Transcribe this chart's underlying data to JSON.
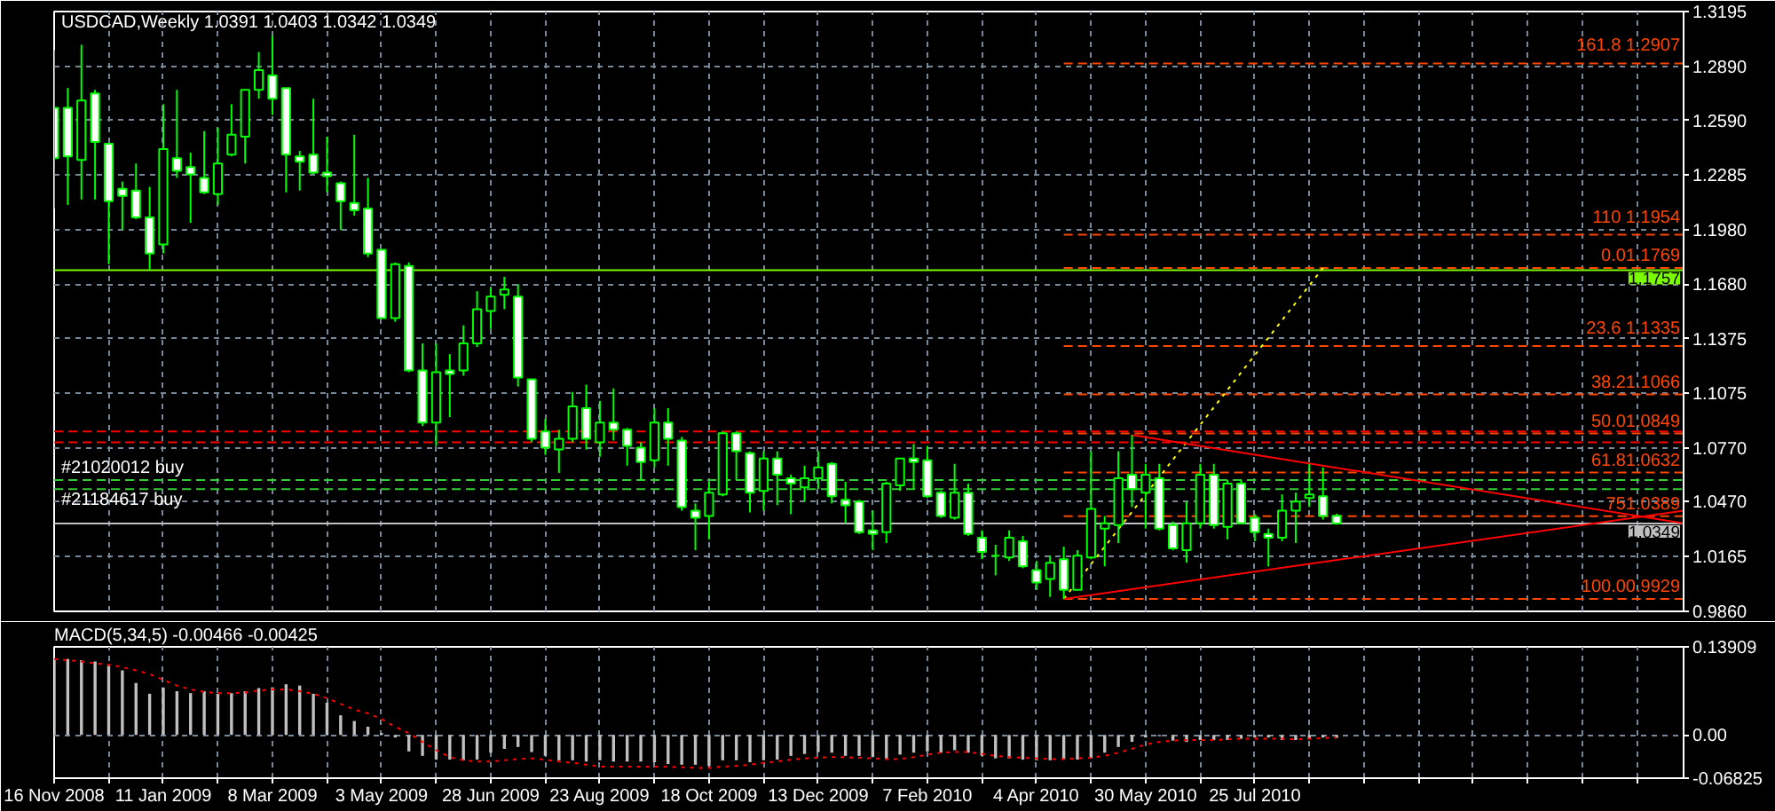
{
  "chart_data": [
    {
      "type": "candlestick",
      "title": "USDCAD,Weekly 1.0391 1.0403 1.0342 1.0349",
      "color": "#00ff00",
      "x": [
        "2008-11-16",
        "2008-11-23",
        "2008-11-30",
        "2008-12-07",
        "2008-12-14",
        "2008-12-21",
        "2008-12-28",
        "2009-01-04",
        "2009-01-11",
        "2009-01-18",
        "2009-01-25",
        "2009-02-01",
        "2009-02-08",
        "2009-02-15",
        "2009-02-22",
        "2009-03-01",
        "2009-03-08",
        "2009-03-15",
        "2009-03-22",
        "2009-03-29",
        "2009-04-05",
        "2009-04-12",
        "2009-04-19",
        "2009-04-26",
        "2009-05-03",
        "2009-05-10",
        "2009-05-17",
        "2009-05-24",
        "2009-05-31",
        "2009-06-07",
        "2009-06-14",
        "2009-06-21",
        "2009-06-28",
        "2009-07-05",
        "2009-07-12",
        "2009-07-19",
        "2009-07-26",
        "2009-08-02",
        "2009-08-09",
        "2009-08-16",
        "2009-08-23",
        "2009-08-30",
        "2009-09-06",
        "2009-09-13",
        "2009-09-20",
        "2009-09-27",
        "2009-10-04",
        "2009-10-11",
        "2009-10-18",
        "2009-10-25",
        "2009-11-01",
        "2009-11-08",
        "2009-11-15",
        "2009-11-22",
        "2009-11-29",
        "2009-12-06",
        "2009-12-13",
        "2009-12-20",
        "2009-12-27",
        "2010-01-03",
        "2010-01-10",
        "2010-01-17",
        "2010-01-24",
        "2010-01-31",
        "2010-02-07",
        "2010-02-14",
        "2010-02-21",
        "2010-02-28",
        "2010-03-07",
        "2010-03-14",
        "2010-03-21",
        "2010-03-28",
        "2010-04-04",
        "2010-04-11",
        "2010-04-18",
        "2010-04-25",
        "2010-05-02",
        "2010-05-09",
        "2010-05-16",
        "2010-05-23",
        "2010-05-30",
        "2010-06-06",
        "2010-06-13",
        "2010-06-20",
        "2010-06-27",
        "2010-07-04",
        "2010-07-11",
        "2010-07-18",
        "2010-07-25",
        "2010-08-01",
        "2010-08-08",
        "2010-08-15",
        "2010-08-22",
        "2010-08-29",
        "2010-09-05"
      ],
      "ohlc": [
        [
          1.266,
          1.298,
          1.21,
          1.238
        ],
        [
          1.266,
          1.277,
          1.212,
          1.239
        ],
        [
          1.237,
          1.301,
          1.215,
          1.27
        ],
        [
          1.274,
          1.276,
          1.215,
          1.247
        ],
        [
          1.246,
          1.246,
          1.179,
          1.214
        ],
        [
          1.221,
          1.225,
          1.198,
          1.217
        ],
        [
          1.22,
          1.235,
          1.204,
          1.205
        ],
        [
          1.205,
          1.222,
          1.176,
          1.185
        ],
        [
          1.19,
          1.268,
          1.185,
          1.243
        ],
        [
          1.238,
          1.276,
          1.227,
          1.231
        ],
        [
          1.233,
          1.241,
          1.202,
          1.229
        ],
        [
          1.227,
          1.253,
          1.218,
          1.219
        ],
        [
          1.218,
          1.255,
          1.212,
          1.235
        ],
        [
          1.24,
          1.268,
          1.239,
          1.251
        ],
        [
          1.25,
          1.276,
          1.235,
          1.276
        ],
        [
          1.276,
          1.297,
          1.271,
          1.287
        ],
        [
          1.284,
          1.306,
          1.262,
          1.271
        ],
        [
          1.277,
          1.277,
          1.219,
          1.24
        ],
        [
          1.239,
          1.242,
          1.22,
          1.236
        ],
        [
          1.24,
          1.271,
          1.229,
          1.23
        ],
        [
          1.23,
          1.25,
          1.219,
          1.228
        ],
        [
          1.224,
          1.225,
          1.198,
          1.214
        ],
        [
          1.213,
          1.251,
          1.206,
          1.209
        ],
        [
          1.21,
          1.227,
          1.183,
          1.185
        ],
        [
          1.187,
          1.187,
          1.149,
          1.149
        ],
        [
          1.149,
          1.18,
          1.147,
          1.179
        ],
        [
          1.178,
          1.18,
          1.119,
          1.12
        ],
        [
          1.12,
          1.135,
          1.089,
          1.091
        ],
        [
          1.091,
          1.135,
          1.078,
          1.119
        ],
        [
          1.12,
          1.129,
          1.094,
          1.118
        ],
        [
          1.12,
          1.145,
          1.117,
          1.135
        ],
        [
          1.135,
          1.164,
          1.133,
          1.154
        ],
        [
          1.153,
          1.166,
          1.143,
          1.161
        ],
        [
          1.162,
          1.172,
          1.154,
          1.165
        ],
        [
          1.161,
          1.168,
          1.111,
          1.116
        ],
        [
          1.115,
          1.115,
          1.08,
          1.082
        ],
        [
          1.086,
          1.093,
          1.073,
          1.077
        ],
        [
          1.076,
          1.087,
          1.063,
          1.082
        ],
        [
          1.082,
          1.108,
          1.08,
          1.1
        ],
        [
          1.099,
          1.112,
          1.076,
          1.082
        ],
        [
          1.08,
          1.103,
          1.072,
          1.091
        ],
        [
          1.091,
          1.11,
          1.081,
          1.087
        ],
        [
          1.087,
          1.088,
          1.067,
          1.078
        ],
        [
          1.077,
          1.08,
          1.059,
          1.069
        ],
        [
          1.07,
          1.099,
          1.066,
          1.091
        ],
        [
          1.091,
          1.099,
          1.067,
          1.082
        ],
        [
          1.081,
          1.083,
          1.042,
          1.044
        ],
        [
          1.042,
          1.046,
          1.02,
          1.038
        ],
        [
          1.039,
          1.058,
          1.026,
          1.052
        ],
        [
          1.051,
          1.086,
          1.05,
          1.085
        ],
        [
          1.085,
          1.086,
          1.059,
          1.075
        ],
        [
          1.074,
          1.075,
          1.041,
          1.052
        ],
        [
          1.053,
          1.075,
          1.042,
          1.071
        ],
        [
          1.071,
          1.075,
          1.045,
          1.062
        ],
        [
          1.06,
          1.062,
          1.04,
          1.057
        ],
        [
          1.055,
          1.067,
          1.047,
          1.06
        ],
        [
          1.06,
          1.075,
          1.054,
          1.066
        ],
        [
          1.068,
          1.069,
          1.046,
          1.05
        ],
        [
          1.048,
          1.058,
          1.035,
          1.045
        ],
        [
          1.047,
          1.048,
          1.029,
          1.03
        ],
        [
          1.031,
          1.042,
          1.02,
          1.029
        ],
        [
          1.03,
          1.058,
          1.024,
          1.057
        ],
        [
          1.056,
          1.071,
          1.053,
          1.071
        ],
        [
          1.071,
          1.079,
          1.054,
          1.069
        ],
        [
          1.07,
          1.078,
          1.049,
          1.05
        ],
        [
          1.052,
          1.053,
          1.038,
          1.039
        ],
        [
          1.038,
          1.068,
          1.037,
          1.052
        ],
        [
          1.052,
          1.057,
          1.028,
          1.029
        ],
        [
          1.027,
          1.031,
          1.015,
          1.019
        ],
        [
          1.017,
          1.023,
          1.006,
          1.017
        ],
        [
          1.016,
          1.031,
          1.014,
          1.027
        ],
        [
          1.025,
          1.028,
          1.01,
          1.011
        ],
        [
          1.009,
          1.014,
          0.998,
          1.002
        ],
        [
          1.004,
          1.017,
          0.994,
          1.013
        ],
        [
          1.015,
          1.022,
          0.9929,
          0.998
        ],
        [
          0.998,
          1.02,
          0.998,
          1.017
        ],
        [
          1.016,
          1.075,
          1.015,
          1.043
        ],
        [
          1.032,
          1.039,
          1.011,
          1.035
        ],
        [
          1.034,
          1.075,
          1.024,
          1.06
        ],
        [
          1.062,
          1.084,
          1.044,
          1.054
        ],
        [
          1.052,
          1.068,
          1.032,
          1.062
        ],
        [
          1.06,
          1.068,
          1.031,
          1.032
        ],
        [
          1.034,
          1.036,
          1.02,
          1.021
        ],
        [
          1.02,
          1.047,
          1.013,
          1.035
        ],
        [
          1.035,
          1.068,
          1.032,
          1.062
        ],
        [
          1.062,
          1.068,
          1.032,
          1.034
        ],
        [
          1.033,
          1.059,
          1.026,
          1.057
        ],
        [
          1.057,
          1.059,
          1.035,
          1.035
        ],
        [
          1.038,
          1.04,
          1.025,
          1.03
        ],
        [
          1.029,
          1.032,
          1.011,
          1.027
        ],
        [
          1.027,
          1.051,
          1.025,
          1.042
        ],
        [
          1.042,
          1.052,
          1.024,
          1.047
        ],
        [
          1.049,
          1.068,
          1.044,
          1.051
        ],
        [
          1.05,
          1.066,
          1.037,
          1.039
        ],
        [
          1.0391,
          1.0403,
          1.0342,
          1.0349
        ]
      ],
      "series": [
        {
          "type": "line",
          "x": [
            "2010-04-18",
            "2011-03-02"
          ],
          "values": [
            1.2907,
            1.2907
          ],
          "color": "#ff4500",
          "line_style": "dashed"
        },
        {
          "type": "line",
          "x": [
            "2010-04-18",
            "2011-03-02"
          ],
          "values": [
            1.1954,
            1.1954
          ],
          "color": "#ff4500",
          "line_style": "dashed"
        },
        {
          "type": "line",
          "x": [
            "2010-04-18",
            "2011-03-02"
          ],
          "values": [
            1.1769,
            1.1769
          ],
          "color": "#ff4500",
          "line_style": "dashed"
        },
        {
          "type": "line",
          "x": [
            "2010-04-18",
            "2011-03-02"
          ],
          "values": [
            1.1335,
            1.1335
          ],
          "color": "#ff4500",
          "line_style": "dashed"
        },
        {
          "type": "line",
          "x": [
            "2010-04-18",
            "2011-03-02"
          ],
          "values": [
            1.1066,
            1.1066
          ],
          "color": "#ff4500",
          "line_style": "dashed"
        },
        {
          "type": "line",
          "x": [
            "2010-04-18",
            "2011-03-02"
          ],
          "values": [
            1.0849,
            1.0849
          ],
          "color": "#ff4500",
          "line_style": "dashed"
        },
        {
          "type": "line",
          "x": [
            "2010-04-18",
            "2011-03-02"
          ],
          "values": [
            1.0632,
            1.0632
          ],
          "color": "#ff4500",
          "line_style": "dashed"
        },
        {
          "type": "line",
          "x": [
            "2010-04-18",
            "2011-03-02"
          ],
          "values": [
            1.0389,
            1.0389
          ],
          "color": "#ff4500",
          "line_style": "dashed"
        },
        {
          "type": "line",
          "x": [
            "2010-04-18",
            "2011-03-02"
          ],
          "values": [
            0.9929,
            0.9929
          ],
          "color": "#ff4500",
          "line_style": "dashed"
        },
        {
          "type": "line",
          "x": [
            "2010-04-18",
            "2010-08-29"
          ],
          "values": [
            0.9929,
            1.1769
          ],
          "color": "#ffff00",
          "line_style": "dotted"
        },
        {
          "type": "line",
          "x": [
            "2010-05-23",
            "2011-03-02"
          ],
          "values": [
            1.084,
            1.035
          ],
          "color": "#ff0000",
          "line_style": "solid"
        },
        {
          "type": "line",
          "x": [
            "2010-04-18",
            "2011-03-02"
          ],
          "values": [
            0.9929,
            1.042
          ],
          "color": "#ff0000",
          "line_style": "solid"
        }
      ],
      "ref_lines": [
        {
          "axis": "y",
          "value": 1.1757,
          "label": "1.1757",
          "color": "#7cfc00",
          "line_style": "solid"
        },
        {
          "axis": "y",
          "value": 1.0349,
          "label": "1.0349",
          "color": "#c0c0c0",
          "line_style": "solid"
        },
        {
          "axis": "y",
          "value": 1.059,
          "label": "#21020012 buy",
          "color": "#32cd32",
          "line_style": "dashed"
        },
        {
          "axis": "y",
          "value": 1.054,
          "label": "#21184617 buy",
          "color": "#32cd32",
          "line_style": "dashed"
        },
        {
          "axis": "y",
          "value": 1.086,
          "color": "#ff0000",
          "line_style": "dashed"
        },
        {
          "axis": "y",
          "value": 1.08,
          "color": "#ff0000",
          "line_style": "dashed"
        }
      ],
      "annotations": [
        {
          "text": "161.8 1.2907",
          "x": "2011-03-02",
          "y": 1.2907
        },
        {
          "text": "110 1.1954",
          "x": "2011-03-02",
          "y": 1.1954
        },
        {
          "text": "0.01.1769",
          "x": "2011-03-02",
          "y": 1.1769
        },
        {
          "text": "23.6 1.1335",
          "x": "2011-03-02",
          "y": 1.1335
        },
        {
          "text": "38.21.1066",
          "x": "2011-03-02",
          "y": 1.1066
        },
        {
          "text": "50.01.0849",
          "x": "2011-03-02",
          "y": 1.0849
        },
        {
          "text": "61.81.0632",
          "x": "2011-03-02",
          "y": 1.0632
        },
        {
          "text": "751.0389",
          "x": "2011-03-02",
          "y": 1.0389
        },
        {
          "text": "100.00.9929",
          "x": "2011-03-02",
          "y": 0.9929
        }
      ],
      "xlim": [
        "2008-11-16",
        "2011-03-02"
      ],
      "ylim": [
        0.986,
        1.3195
      ],
      "xticks": [
        {
          "value": "2008-11-16",
          "label": null
        },
        {
          "value": "2008-12-14",
          "label": null
        },
        {
          "value": "2009-01-11",
          "label": null
        },
        {
          "value": "2009-02-08",
          "label": null
        },
        {
          "value": "2009-03-08",
          "label": null
        },
        {
          "value": "2009-04-05",
          "label": null
        },
        {
          "value": "2009-05-03",
          "label": null
        },
        {
          "value": "2009-05-31",
          "label": null
        },
        {
          "value": "2009-06-28",
          "label": null
        },
        {
          "value": "2009-07-26",
          "label": null
        },
        {
          "value": "2009-08-23",
          "label": null
        },
        {
          "value": "2009-09-20",
          "label": null
        },
        {
          "value": "2009-10-18",
          "label": null
        },
        {
          "value": "2009-11-15",
          "label": null
        },
        {
          "value": "2009-12-13",
          "label": null
        },
        {
          "value": "2010-01-10",
          "label": null
        },
        {
          "value": "2010-02-07",
          "label": null
        },
        {
          "value": "2010-03-07",
          "label": null
        },
        {
          "value": "2010-04-04",
          "label": null
        },
        {
          "value": "2010-05-02",
          "label": null
        },
        {
          "value": "2010-05-30",
          "label": null
        },
        {
          "value": "2010-06-27",
          "label": null
        },
        {
          "value": "2010-07-25",
          "label": null
        },
        {
          "value": "2010-08-22",
          "label": null
        },
        {
          "value": "2010-09-19",
          "label": null
        },
        {
          "value": "2010-10-17",
          "label": null
        },
        {
          "value": "2010-11-14",
          "label": null
        },
        {
          "value": "2010-12-12",
          "label": null
        },
        {
          "value": "2011-01-09",
          "label": null
        },
        {
          "value": "2011-02-06",
          "label": null
        }
      ],
      "yticks": [
        1.3195,
        {
          "value": 1.289,
          "label": "1.2890"
        },
        {
          "value": 1.259,
          "label": "1.2590"
        },
        1.2285,
        {
          "value": 1.198,
          "label": "1.1980"
        },
        {
          "value": 1.168,
          "label": "1.1680"
        },
        1.1375,
        1.1075,
        {
          "value": 1.077,
          "label": "1.0770"
        },
        {
          "value": 1.047,
          "label": "1.0470"
        },
        1.0165,
        {
          "value": 0.986,
          "label": "0.9860"
        }
      ],
      "grid": true,
      "tick_labels": "y"
    },
    {
      "type": "bar",
      "title": "MACD(5,34,5) -0.00466 -0.00425",
      "x": [
        "2008-11-16",
        "2008-11-23",
        "2008-11-30",
        "2008-12-07",
        "2008-12-14",
        "2008-12-21",
        "2008-12-28",
        "2009-01-04",
        "2009-01-11",
        "2009-01-18",
        "2009-01-25",
        "2009-02-01",
        "2009-02-08",
        "2009-02-15",
        "2009-02-22",
        "2009-03-01",
        "2009-03-08",
        "2009-03-15",
        "2009-03-22",
        "2009-03-29",
        "2009-04-05",
        "2009-04-12",
        "2009-04-19",
        "2009-04-26",
        "2009-05-03",
        "2009-05-10",
        "2009-05-17",
        "2009-05-24",
        "2009-05-31",
        "2009-06-07",
        "2009-06-14",
        "2009-06-21",
        "2009-06-28",
        "2009-07-05",
        "2009-07-12",
        "2009-07-19",
        "2009-07-26",
        "2009-08-02",
        "2009-08-09",
        "2009-08-16",
        "2009-08-23",
        "2009-08-30",
        "2009-09-06",
        "2009-09-13",
        "2009-09-20",
        "2009-09-27",
        "2009-10-04",
        "2009-10-11",
        "2009-10-18",
        "2009-10-25",
        "2009-11-01",
        "2009-11-08",
        "2009-11-15",
        "2009-11-22",
        "2009-11-29",
        "2009-12-06",
        "2009-12-13",
        "2009-12-20",
        "2009-12-27",
        "2010-01-03",
        "2010-01-10",
        "2010-01-17",
        "2010-01-24",
        "2010-01-31",
        "2010-02-07",
        "2010-02-14",
        "2010-02-21",
        "2010-02-28",
        "2010-03-07",
        "2010-03-14",
        "2010-03-21",
        "2010-03-28",
        "2010-04-04",
        "2010-04-11",
        "2010-04-18",
        "2010-04-25",
        "2010-05-02",
        "2010-05-09",
        "2010-05-16",
        "2010-05-23",
        "2010-05-30",
        "2010-06-06",
        "2010-06-13",
        "2010-06-20",
        "2010-06-27",
        "2010-07-04",
        "2010-07-11",
        "2010-07-18",
        "2010-07-25",
        "2010-08-01",
        "2010-08-08",
        "2010-08-15",
        "2010-08-22",
        "2010-08-29",
        "2010-09-05"
      ],
      "series": [
        {
          "color": "#c0c0c0",
          "values": [
            0.12,
            0.12,
            0.118,
            0.116,
            0.109,
            0.102,
            0.082,
            0.065,
            0.075,
            0.069,
            0.066,
            0.069,
            0.065,
            0.066,
            0.069,
            0.074,
            0.075,
            0.08,
            0.078,
            0.065,
            0.051,
            0.031,
            0.022,
            0.013,
            0.003,
            -0.004,
            -0.026,
            -0.033,
            -0.039,
            -0.039,
            -0.04,
            -0.039,
            -0.028,
            -0.022,
            -0.019,
            -0.027,
            -0.033,
            -0.04,
            -0.04,
            -0.042,
            -0.04,
            -0.042,
            -0.042,
            -0.042,
            -0.043,
            -0.046,
            -0.047,
            -0.047,
            -0.049,
            -0.04,
            -0.04,
            -0.043,
            -0.04,
            -0.039,
            -0.033,
            -0.03,
            -0.027,
            -0.028,
            -0.033,
            -0.033,
            -0.035,
            -0.039,
            -0.031,
            -0.028,
            -0.026,
            -0.028,
            -0.024,
            -0.028,
            -0.033,
            -0.037,
            -0.037,
            -0.039,
            -0.04,
            -0.04,
            -0.039,
            -0.039,
            -0.037,
            -0.028,
            -0.019,
            -0.011,
            -0.004,
            -0.002,
            -0.009,
            -0.011,
            -0.008,
            -0.008,
            -0.008,
            -0.006,
            -0.004,
            -0.004,
            -0.008,
            -0.008,
            -0.006,
            -0.004,
            -0.00466
          ]
        },
        {
          "type": "line",
          "color": "#ff0000",
          "line_style": "dotted",
          "values": [
            0.12,
            0.118,
            0.116,
            0.113,
            0.111,
            0.107,
            0.102,
            0.096,
            0.087,
            0.078,
            0.072,
            0.068,
            0.066,
            0.066,
            0.067,
            0.07,
            0.072,
            0.072,
            0.069,
            0.065,
            0.058,
            0.049,
            0.04,
            0.034,
            0.025,
            0.013,
            0.003,
            -0.011,
            -0.024,
            -0.035,
            -0.04,
            -0.042,
            -0.042,
            -0.04,
            -0.038,
            -0.037,
            -0.039,
            -0.042,
            -0.044,
            -0.047,
            -0.05,
            -0.05,
            -0.05,
            -0.05,
            -0.05,
            -0.05,
            -0.051,
            -0.052,
            -0.052,
            -0.05,
            -0.049,
            -0.047,
            -0.044,
            -0.042,
            -0.039,
            -0.037,
            -0.036,
            -0.035,
            -0.035,
            -0.036,
            -0.037,
            -0.038,
            -0.038,
            -0.035,
            -0.031,
            -0.028,
            -0.027,
            -0.027,
            -0.03,
            -0.033,
            -0.035,
            -0.036,
            -0.037,
            -0.038,
            -0.038,
            -0.037,
            -0.036,
            -0.033,
            -0.028,
            -0.022,
            -0.015,
            -0.011,
            -0.009,
            -0.008,
            -0.008,
            -0.008,
            -0.007,
            -0.006,
            -0.006,
            -0.006,
            -0.006,
            -0.007,
            -0.006,
            -0.005,
            -0.00425
          ]
        }
      ],
      "xlim": [
        "2008-11-16",
        "2011-03-02"
      ],
      "ylim": [
        -0.06825,
        0.13909
      ],
      "xticks": [
        {
          "value": "2008-11-16",
          "label": "16 Nov 2008"
        },
        {
          "value": "2008-12-14",
          "label": null
        },
        {
          "value": "2009-01-11",
          "label": "11 Jan 2009"
        },
        {
          "value": "2009-02-08",
          "label": null
        },
        {
          "value": "2009-03-08",
          "label": "8 Mar 2009"
        },
        {
          "value": "2009-04-05",
          "label": null
        },
        {
          "value": "2009-05-03",
          "label": "3 May 2009"
        },
        {
          "value": "2009-05-31",
          "label": null
        },
        {
          "value": "2009-06-28",
          "label": "28 Jun 2009"
        },
        {
          "value": "2009-07-26",
          "label": null
        },
        {
          "value": "2009-08-23",
          "label": "23 Aug 2009"
        },
        {
          "value": "2009-09-20",
          "label": null
        },
        {
          "value": "2009-10-18",
          "label": "18 Oct 2009"
        },
        {
          "value": "2009-11-15",
          "label": null
        },
        {
          "value": "2009-12-13",
          "label": "13 Dec 2009"
        },
        {
          "value": "2010-01-10",
          "label": null
        },
        {
          "value": "2010-02-07",
          "label": "7 Feb 2010"
        },
        {
          "value": "2010-03-07",
          "label": null
        },
        {
          "value": "2010-04-04",
          "label": "4 Apr 2010"
        },
        {
          "value": "2010-05-02",
          "label": null
        },
        {
          "value": "2010-05-30",
          "label": "30 May 2010"
        },
        {
          "value": "2010-06-27",
          "label": null
        },
        {
          "value": "2010-07-25",
          "label": "25 Jul 2010"
        },
        {
          "value": "2010-08-22",
          "label": null
        },
        {
          "value": "2010-09-19",
          "label": null
        },
        {
          "value": "2010-10-17",
          "label": null
        },
        {
          "value": "2010-11-14",
          "label": null
        },
        {
          "value": "2010-12-12",
          "label": null
        },
        {
          "value": "2011-01-09",
          "label": null
        },
        {
          "value": "2011-02-06",
          "label": null
        }
      ],
      "yticks": [
        0.13909,
        {
          "value": 0,
          "label": "0.00"
        },
        -0.06825
      ],
      "grid": true
    }
  ]
}
